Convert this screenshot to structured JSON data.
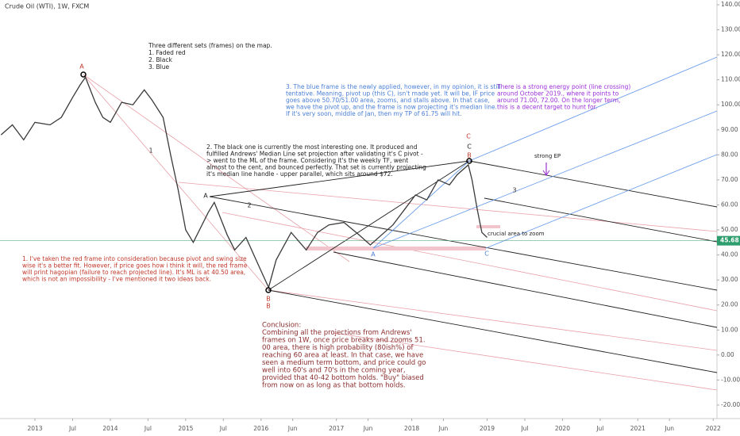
{
  "chart_data": {
    "type": "line",
    "title": "Crude Oil (WTI), 1W, FXCM",
    "color": "#3a3a3a",
    "x": [
      2012.55,
      2012.7,
      2012.85,
      2013.0,
      2013.2,
      2013.35,
      2013.5,
      2013.6,
      2013.67,
      2013.8,
      2013.9,
      2014.0,
      2014.15,
      2014.3,
      2014.45,
      2014.55,
      2014.7,
      2014.8,
      2014.9,
      2015.0,
      2015.1,
      2015.3,
      2015.38,
      2015.55,
      2015.65,
      2015.8,
      2015.95,
      2016.1,
      2016.2,
      2016.4,
      2016.6,
      2016.75,
      2016.9,
      2017.1,
      2017.3,
      2017.45,
      2017.6,
      2017.75,
      2017.9,
      2018.05,
      2018.2,
      2018.35,
      2018.5,
      2018.6,
      2018.75,
      2018.8,
      2018.87,
      2018.93,
      2019.0
    ],
    "values": [
      88,
      92,
      86,
      93,
      92,
      95,
      103,
      108,
      111,
      101,
      95,
      93,
      101,
      100,
      106,
      102,
      95,
      80,
      66,
      50,
      45,
      57,
      61,
      48,
      42,
      47,
      37,
      27,
      38,
      49,
      42,
      49,
      52,
      53,
      48,
      44,
      48,
      52,
      58,
      64,
      62,
      70,
      68,
      72,
      76,
      70,
      58,
      49,
      47
    ],
    "last_price": 45.68,
    "xlim": [
      2012.536,
      2022.05
    ],
    "xticks": [
      2013,
      {
        "value": 2013.5,
        "label": "Jul"
      },
      2014,
      {
        "value": 2014.5,
        "label": "Jul"
      },
      2015,
      {
        "value": 2015.5,
        "label": "Jul"
      },
      2016,
      {
        "value": 2016.42,
        "label": "Jun"
      },
      2017,
      {
        "value": 2017.42,
        "label": "Jun"
      },
      2018,
      {
        "value": 2018.42,
        "label": "Jun"
      },
      2019,
      {
        "value": 2019.5,
        "label": "Jul"
      },
      2020,
      {
        "value": 2020.5,
        "label": "Jul"
      },
      2021,
      {
        "value": 2021.42,
        "label": "Jun"
      },
      2022
    ],
    "ylim": [
      -25.4,
      141.9
    ],
    "yticks": [
      {
        "value": 140,
        "label": "140.00"
      },
      {
        "value": 130,
        "label": "130.00"
      },
      {
        "value": 120,
        "label": "120.00"
      },
      {
        "value": 110,
        "label": "110.00"
      },
      {
        "value": 100,
        "label": "100.00"
      },
      {
        "value": 90,
        "label": "90.00"
      },
      {
        "value": 80,
        "label": "80.00"
      },
      {
        "value": 70,
        "label": "70.00"
      },
      {
        "value": 60,
        "label": "60.00"
      },
      {
        "value": 50,
        "label": "50.00"
      },
      {
        "value": 40,
        "label": "40.00"
      },
      {
        "value": 30,
        "label": "30.00"
      },
      {
        "value": 20,
        "label": "20.00"
      },
      {
        "value": 10,
        "label": "10.00"
      },
      {
        "value": 0,
        "label": "0.00"
      },
      {
        "value": -10,
        "label": "-10.00"
      },
      {
        "value": -20,
        "label": "-20.00"
      }
    ],
    "labels": [
      "A",
      "B",
      "B",
      "A",
      "C",
      "C",
      "B",
      "A",
      "C",
      "1",
      "2",
      "3"
    ],
    "annotations": [
      {
        "lines": [
          "Three different sets (frames) on the map.",
          "1. Faded red",
          "2. Black",
          "3. Blue"
        ]
      },
      {
        "lines": [
          "3. The blue frame is the newly applied, however, in my opinion, it is still",
          "tentative. Meaning, pivot up (this C), isn't made yet. It will be, IF price",
          "goes above 50.70/51.00 area, zooms, and stalls above. In that case,",
          "we have the pivot up, and the frame is now projecting it's median line.",
          "If it's very soon, middle of Jan, then my TP of 61.75 will hit."
        ]
      },
      {
        "lines": [
          "There is a strong energy point (line crossing)",
          "around October 2019., where it points to",
          "around 71.00, 72.00. On the longer term,",
          "this is a decent target to hunt for."
        ]
      },
      {
        "lines": [
          "2. The black one is currently the most interesting one. It produced and",
          "fulfilled Andrews' Median Line set projection after validating it's C pivot -",
          "> went to the ML of the frame. Considering it's the weekly TF, went",
          "almost to the cent, and bounced perfectly. That set is currently projecting",
          "it's median line handle - upper parallel, which sits around $72."
        ]
      },
      {
        "lines": [
          "1. I've taken the red frame into consideration because pivot and swing size",
          "wise it's a better fit. However, if price goes how i think it will, the red frame",
          "will print hagopian (failure to reach projected line). It's ML is at 40.50 area,",
          "which is not an impossibility - I've mentioned it two ideas back."
        ]
      },
      {
        "lines": [
          "Conclusion:",
          "Combining all the projections from Andrews'",
          "frames on 1W, once price breaks and zooms 51.",
          "00 area, there is high probability (80ish%) of",
          "reaching 60 area at least. In that case, we have",
          "seen a medium term bottom, and price could go",
          "well into 60's and 70's in the coming year,",
          "provided that 40-42 bottom holds. \"Buy\" biased",
          "from now on as long as that bottom holds."
        ]
      },
      {
        "lines": [
          "strong EP"
        ]
      },
      {
        "lines": [
          "crucial area to zoom"
        ]
      }
    ]
  }
}
